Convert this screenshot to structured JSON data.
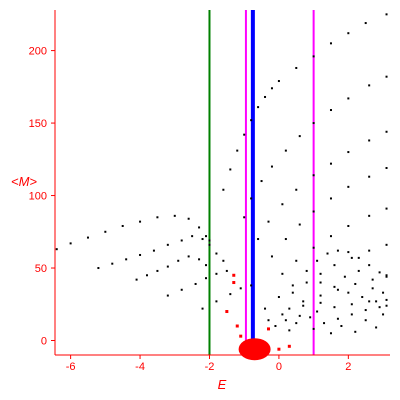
{
  "chart_data": {
    "type": "scatter",
    "title": "",
    "xlabel": "E",
    "ylabel": "<M>",
    "xlim": [
      -6.45,
      3.2
    ],
    "ylim": [
      -10,
      228
    ],
    "xticks": [
      -6,
      -4,
      -2,
      0,
      2
    ],
    "yticks": [
      0,
      50,
      100,
      150,
      200
    ],
    "grid": false,
    "colors": {
      "axis": "#ff0000",
      "points": "#000000",
      "highlight_points": "#ff0000",
      "line_green": "#008000",
      "line_magenta": "#ff00ff",
      "line_blue": "#0000ff"
    },
    "vertical_lines": [
      {
        "x": -2.0,
        "color": "#008000"
      },
      {
        "x": -0.95,
        "color": "#ff00ff"
      },
      {
        "x": -0.75,
        "color": "#0000ff"
      },
      {
        "x": 1.0,
        "color": "#ff00ff"
      }
    ],
    "series": [
      {
        "values": [
          [
            -6.4,
            63
          ],
          [
            -6.0,
            67
          ],
          [
            -5.5,
            71
          ],
          [
            -5.0,
            75
          ],
          [
            -4.5,
            79
          ],
          [
            -4.0,
            82
          ],
          [
            -3.5,
            85
          ],
          [
            -3.0,
            86
          ],
          [
            -2.6,
            84
          ],
          [
            -2.3,
            78
          ],
          [
            -2.1,
            72
          ],
          [
            -2.0,
            69
          ],
          [
            -5.2,
            50
          ],
          [
            -4.8,
            53
          ],
          [
            -4.4,
            56
          ],
          [
            -4.0,
            59
          ],
          [
            -3.6,
            62
          ],
          [
            -3.2,
            66
          ],
          [
            -2.8,
            69
          ],
          [
            -2.5,
            72
          ],
          [
            -2.2,
            70
          ],
          [
            -2.0,
            66
          ],
          [
            -1.8,
            60
          ],
          [
            -1.6,
            55
          ],
          [
            -4.1,
            42
          ],
          [
            -3.8,
            45
          ],
          [
            -3.5,
            48
          ],
          [
            -3.2,
            51
          ],
          [
            -2.9,
            55
          ],
          [
            -2.6,
            58
          ],
          [
            -2.3,
            56
          ],
          [
            -2.1,
            52
          ],
          [
            -3.2,
            31
          ],
          [
            -2.8,
            35
          ],
          [
            -2.4,
            39
          ],
          [
            -2.1,
            43
          ],
          [
            -1.8,
            46
          ],
          [
            -1.5,
            48
          ],
          [
            -2.2,
            22
          ],
          [
            -1.8,
            27
          ],
          [
            -1.4,
            32
          ],
          [
            -1.1,
            36
          ],
          [
            -0.8,
            38
          ],
          [
            -1.6,
            104
          ],
          [
            -1.4,
            118
          ],
          [
            -1.2,
            131
          ],
          [
            -1.0,
            142
          ],
          [
            -0.8,
            152
          ],
          [
            -0.6,
            161
          ],
          [
            -0.4,
            168
          ],
          [
            -0.2,
            174
          ],
          [
            0.0,
            179
          ],
          [
            0.5,
            188
          ],
          [
            1.0,
            196
          ],
          [
            1.5,
            205
          ],
          [
            2.0,
            212
          ],
          [
            2.5,
            219
          ],
          [
            3.1,
            225
          ],
          [
            -1.0,
            85
          ],
          [
            -0.8,
            98
          ],
          [
            -0.5,
            110
          ],
          [
            -0.2,
            120
          ],
          [
            0.2,
            131
          ],
          [
            0.6,
            141
          ],
          [
            1.0,
            150
          ],
          [
            1.5,
            159
          ],
          [
            2.0,
            167
          ],
          [
            2.6,
            176
          ],
          [
            3.1,
            182
          ],
          [
            -0.6,
            70
          ],
          [
            -0.3,
            82
          ],
          [
            0.1,
            94
          ],
          [
            0.5,
            104
          ],
          [
            1.0,
            114
          ],
          [
            1.5,
            122
          ],
          [
            2.0,
            130
          ],
          [
            2.6,
            138
          ],
          [
            3.1,
            144
          ],
          [
            -0.2,
            58
          ],
          [
            0.2,
            70
          ],
          [
            0.6,
            80
          ],
          [
            1.0,
            89
          ],
          [
            1.5,
            98
          ],
          [
            2.0,
            106
          ],
          [
            2.6,
            113
          ],
          [
            3.1,
            119
          ],
          [
            0.1,
            46
          ],
          [
            0.5,
            55
          ],
          [
            1.0,
            64
          ],
          [
            1.5,
            72
          ],
          [
            2.0,
            79
          ],
          [
            2.6,
            86
          ],
          [
            3.1,
            91
          ],
          [
            0.4,
            33
          ],
          [
            0.8,
            40
          ],
          [
            1.2,
            46
          ],
          [
            1.6,
            52
          ],
          [
            2.1,
            57
          ],
          [
            2.6,
            62
          ],
          [
            3.1,
            66
          ],
          [
            0.3,
            22
          ],
          [
            0.7,
            27
          ],
          [
            1.2,
            31
          ],
          [
            1.7,
            35
          ],
          [
            2.2,
            39
          ],
          [
            2.7,
            42
          ],
          [
            3.1,
            45
          ],
          [
            0.2,
            14
          ],
          [
            0.6,
            17
          ],
          [
            1.1,
            20
          ],
          [
            1.6,
            23
          ],
          [
            2.1,
            25
          ],
          [
            2.6,
            27
          ],
          [
            3.1,
            28
          ],
          [
            1.1,
            55
          ],
          [
            1.4,
            60
          ],
          [
            1.7,
            62
          ],
          [
            2.0,
            61
          ],
          [
            2.3,
            57
          ],
          [
            2.6,
            52
          ],
          [
            2.9,
            47
          ],
          [
            3.1,
            44
          ],
          [
            1.2,
            40
          ],
          [
            1.6,
            37
          ],
          [
            2.0,
            33
          ],
          [
            2.4,
            30
          ],
          [
            2.8,
            27
          ],
          [
            3.1,
            24
          ],
          [
            1.3,
            12
          ],
          [
            1.7,
            15
          ],
          [
            2.1,
            18
          ],
          [
            2.5,
            21
          ],
          [
            2.9,
            23
          ],
          [
            -0.4,
            22
          ],
          [
            -0.3,
            14
          ],
          [
            -0.1,
            10
          ],
          [
            0.1,
            18
          ],
          [
            0.3,
            7
          ],
          [
            0.5,
            12
          ],
          [
            0.7,
            24
          ],
          [
            0.9,
            16
          ],
          [
            1.0,
            8
          ],
          [
            1.2,
            26
          ],
          [
            1.5,
            5
          ],
          [
            1.8,
            10
          ],
          [
            2.2,
            6
          ],
          [
            2.5,
            14
          ],
          [
            2.8,
            9
          ],
          [
            3.0,
            18
          ],
          [
            0.0,
            30
          ],
          [
            0.4,
            38
          ],
          [
            0.8,
            48
          ],
          [
            1.9,
            44
          ],
          [
            2.3,
            48
          ],
          [
            2.7,
            36
          ],
          [
            3.0,
            33
          ]
        ]
      },
      {
        "values": [
          [
            -1.3,
            45
          ],
          [
            -1.3,
            40
          ],
          [
            -1.5,
            20
          ],
          [
            -1.2,
            10
          ],
          [
            -1.1,
            3
          ],
          [
            -0.9,
            -4
          ],
          [
            -0.7,
            -8
          ],
          [
            -0.4,
            -6
          ],
          [
            -0.3,
            8
          ],
          [
            0.0,
            -6
          ],
          [
            0.3,
            -4
          ]
        ]
      }
    ]
  }
}
